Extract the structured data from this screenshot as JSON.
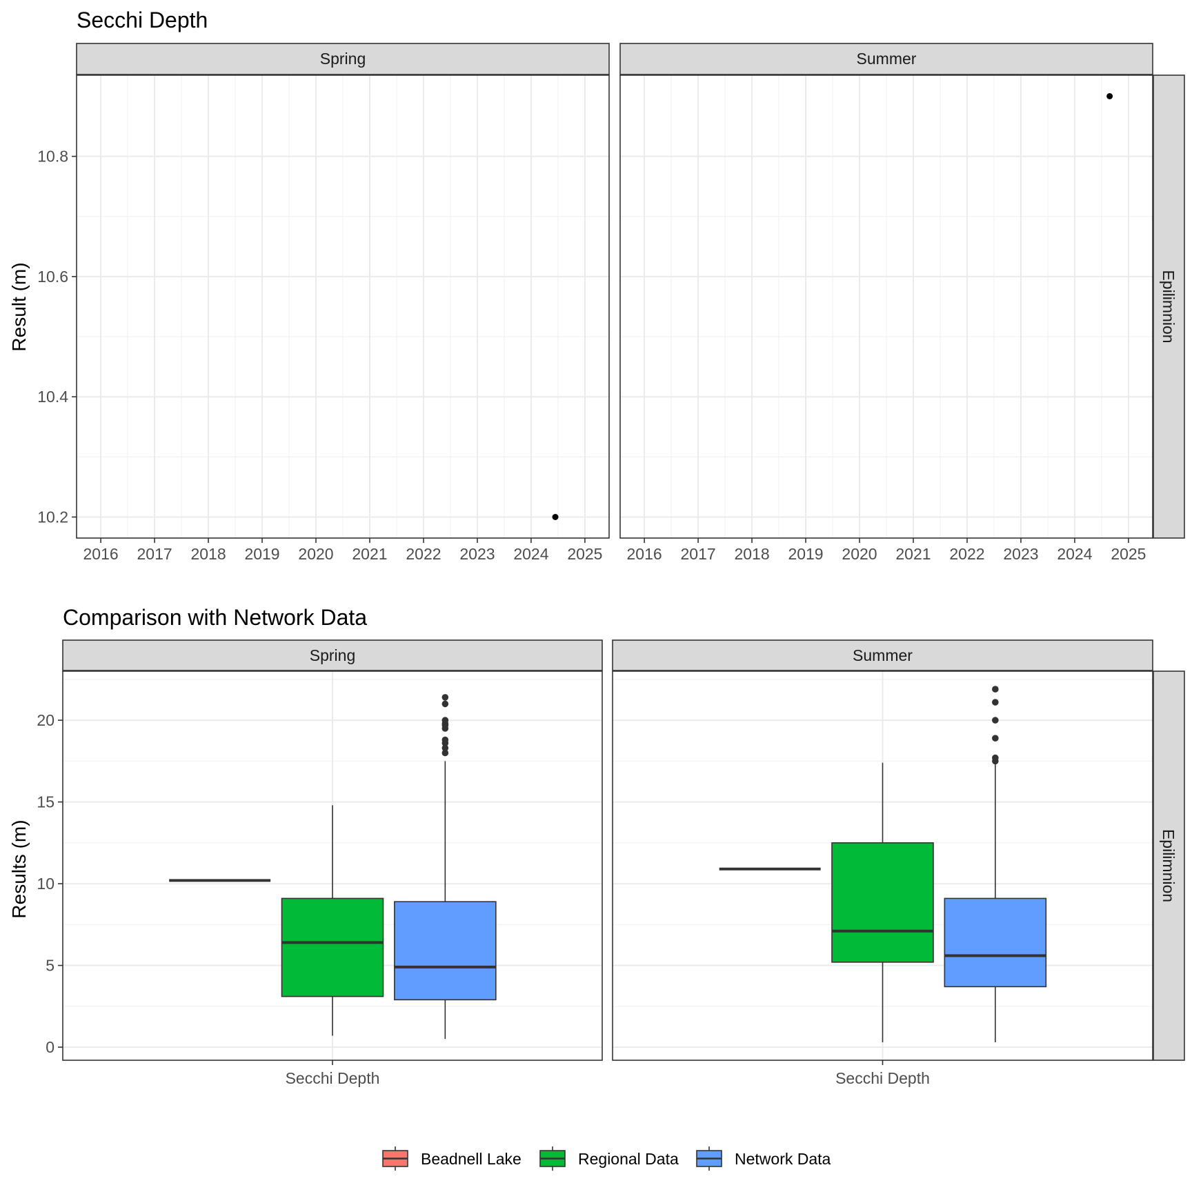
{
  "chart_data": [
    {
      "type": "scatter",
      "title": "Secchi Depth",
      "ylabel": "Result (m)",
      "xlabel": "",
      "facets": [
        "Spring",
        "Summer"
      ],
      "row_strip": "Epilimnion",
      "x_ticks": [
        "2016",
        "2017",
        "2018",
        "2019",
        "2020",
        "2021",
        "2022",
        "2023",
        "2024",
        "2025"
      ],
      "y_ticks": [
        "10.2",
        "10.4",
        "10.6",
        "10.8"
      ],
      "xlim": [
        2015.55,
        2025.45
      ],
      "ylim": [
        10.165,
        10.935
      ],
      "grid": true,
      "points": [
        {
          "facet": "Spring",
          "x": 2024.45,
          "y": 10.2
        },
        {
          "facet": "Summer",
          "x": 2024.65,
          "y": 10.9
        }
      ]
    },
    {
      "type": "box",
      "title": "Comparison with Network Data",
      "ylabel": "Results (m)",
      "xlabel": "",
      "facets": [
        "Spring",
        "Summer"
      ],
      "row_strip": "Epilimnion",
      "categories": [
        "Secchi Depth"
      ],
      "y_ticks": [
        "0",
        "5",
        "10",
        "15",
        "20"
      ],
      "ylim": [
        -0.8,
        23
      ],
      "grid": true,
      "series": [
        {
          "name": "Beadnell Lake",
          "color": "#F8766D"
        },
        {
          "name": "Regional Data",
          "color": "#00BA38"
        },
        {
          "name": "Network Data",
          "color": "#619CFF"
        }
      ],
      "boxes": [
        {
          "facet": "Spring",
          "series": "Beadnell Lake",
          "min": 10.2,
          "q1": 10.2,
          "median": 10.2,
          "q3": 10.2,
          "max": 10.2,
          "outliers": []
        },
        {
          "facet": "Spring",
          "series": "Regional Data",
          "min": 0.7,
          "q1": 3.1,
          "median": 6.4,
          "q3": 9.1,
          "max": 14.8,
          "outliers": []
        },
        {
          "facet": "Spring",
          "series": "Network Data",
          "min": 0.5,
          "q1": 2.9,
          "median": 4.9,
          "q3": 8.9,
          "max": 17.5,
          "outliers": [
            18.0,
            18.3,
            18.6,
            18.8,
            19.5,
            19.7,
            19.8,
            20.0,
            21.0,
            21.4
          ]
        },
        {
          "facet": "Summer",
          "series": "Beadnell Lake",
          "min": 10.9,
          "q1": 10.9,
          "median": 10.9,
          "q3": 10.9,
          "max": 10.9,
          "outliers": []
        },
        {
          "facet": "Summer",
          "series": "Regional Data",
          "min": 0.3,
          "q1": 5.2,
          "median": 7.1,
          "q3": 12.5,
          "max": 17.4,
          "outliers": []
        },
        {
          "facet": "Summer",
          "series": "Network Data",
          "min": 0.3,
          "q1": 3.7,
          "median": 5.6,
          "q3": 9.1,
          "max": 17.3,
          "outliers": [
            17.5,
            17.7,
            18.9,
            20.0,
            21.1,
            21.9
          ]
        }
      ],
      "legend": {
        "position": "bottom",
        "entries": [
          "Beadnell Lake",
          "Regional Data",
          "Network Data"
        ]
      }
    }
  ]
}
